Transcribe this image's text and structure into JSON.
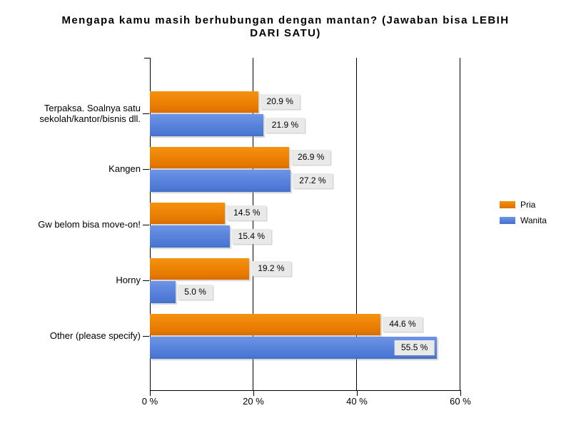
{
  "title": {
    "line1": "Mengapa kamu masih berhubungan dengan mantan? (Jawaban bisa LEBIH",
    "line2": "DARI SATU)"
  },
  "chart_data": {
    "type": "bar",
    "orientation": "horizontal",
    "title": "Mengapa kamu masih berhubungan dengan mantan? (Jawaban bisa LEBIH DARI SATU)",
    "categories": [
      "Terpaksa. Soalnya satu sekolah/kantor/bisnis dll.",
      "Kangen",
      "Gw belom bisa move-on!",
      "Horny",
      "Other (please specify)"
    ],
    "category_lines": [
      [
        "Terpaksa. Soalnya satu",
        "sekolah/kantor/bisnis dll."
      ],
      [
        "Kangen"
      ],
      [
        "Gw belom bisa move-on!"
      ],
      [
        "Horny"
      ],
      [
        "Other (please specify)"
      ]
    ],
    "series": [
      {
        "name": "Pria",
        "color_top": "#F6920E",
        "color_bottom": "#D86C00",
        "values": [
          20.9,
          26.9,
          14.5,
          19.2,
          44.6
        ],
        "labels": [
          "20.9 %",
          "26.9 %",
          "14.5 %",
          "19.2 %",
          "44.6 %"
        ]
      },
      {
        "name": "Wanita",
        "color_top": "#6C95E7",
        "color_bottom": "#4270CB",
        "values": [
          21.9,
          27.2,
          15.4,
          5.0,
          55.5
        ],
        "labels": [
          "21.9 %",
          "27.2 %",
          "15.4 %",
          "5.0 %",
          "55.5 %"
        ]
      }
    ],
    "xlim": [
      0,
      60
    ],
    "xticks": [
      0,
      20,
      40,
      60
    ],
    "xtick_labels": [
      "0 %",
      "20 %",
      "40 %",
      "60 %"
    ],
    "grid": true,
    "legend_position": "right",
    "value_label_bg": "#E9E9E9",
    "axis_color": "#000000"
  }
}
